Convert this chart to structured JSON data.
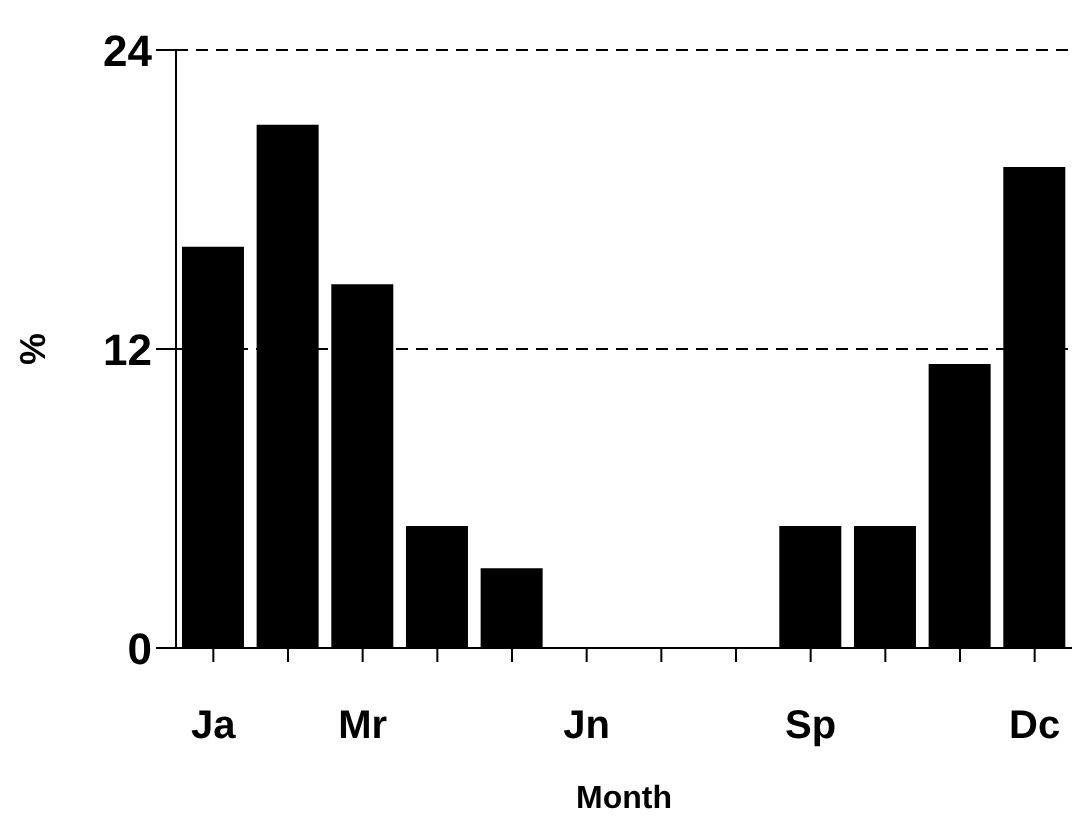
{
  "chart_data": {
    "type": "bar",
    "xlabel": "Month",
    "ylabel": "%",
    "categories": [
      "Ja",
      null,
      "Mr",
      null,
      null,
      "Jn",
      null,
      null,
      "Sp",
      null,
      null,
      "Dc"
    ],
    "values": [
      16.1,
      21.0,
      14.6,
      4.9,
      3.2,
      0,
      0,
      0,
      4.9,
      4.9,
      11.4,
      19.3
    ],
    "color": "#000000",
    "ylim": [
      0,
      24
    ],
    "yticks": [
      0,
      12,
      24
    ],
    "grid": "y"
  }
}
